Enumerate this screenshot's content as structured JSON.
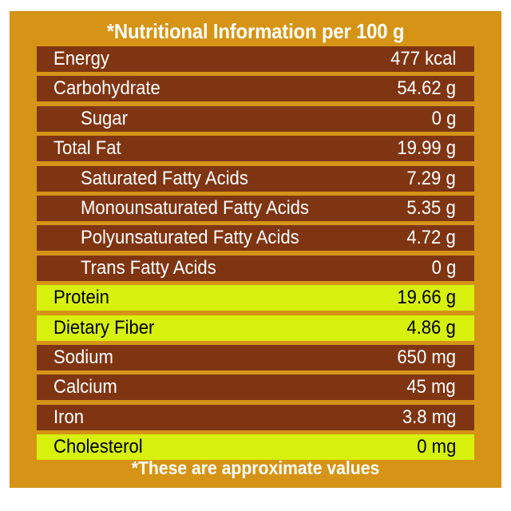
{
  "title": "*Nutritional Information per 100 g",
  "footer": "*These are approximate values",
  "colors": {
    "panel": "#d59416",
    "row": "#803512",
    "highlight": "#d7f00c"
  },
  "rows": [
    {
      "label": "Energy",
      "value": "477 kcal",
      "indent": false,
      "highlight": false
    },
    {
      "label": "Carbohydrate",
      "value": "54.62 g",
      "indent": false,
      "highlight": false
    },
    {
      "label": "Sugar",
      "value": "0 g",
      "indent": true,
      "highlight": false
    },
    {
      "label": "Total Fat",
      "value": "19.99 g",
      "indent": false,
      "highlight": false
    },
    {
      "label": "Saturated Fatty Acids",
      "value": "7.29 g",
      "indent": true,
      "highlight": false
    },
    {
      "label": "Monounsaturated Fatty Acids",
      "value": "5.35 g",
      "indent": true,
      "highlight": false
    },
    {
      "label": "Polyunsaturated Fatty Acids",
      "value": "4.72 g",
      "indent": true,
      "highlight": false
    },
    {
      "label": "Trans Fatty Acids",
      "value": "0 g",
      "indent": true,
      "highlight": false
    },
    {
      "label": "Protein",
      "value": "19.66 g",
      "indent": false,
      "highlight": true
    },
    {
      "label": "Dietary Fiber",
      "value": "4.86 g",
      "indent": false,
      "highlight": true
    },
    {
      "label": "Sodium",
      "value": "650 mg",
      "indent": false,
      "highlight": false
    },
    {
      "label": "Calcium",
      "value": "45 mg",
      "indent": false,
      "highlight": false
    },
    {
      "label": "Iron",
      "value": "3.8 mg",
      "indent": false,
      "highlight": false
    },
    {
      "label": "Cholesterol",
      "value": "0 mg",
      "indent": false,
      "highlight": true
    }
  ]
}
